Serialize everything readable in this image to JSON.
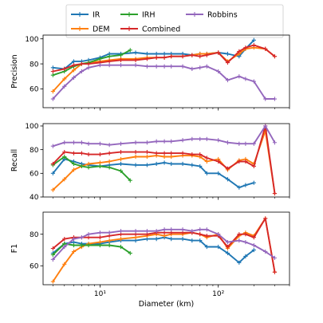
{
  "chart_data": {
    "type": "line",
    "x_scale": "log",
    "xlabel": "Diameter (km)",
    "xlim": [
      3.3,
      400
    ],
    "x_ticks": [
      10,
      100
    ],
    "x_tick_labels": [
      "10¹",
      "10²"
    ],
    "legend": {
      "placement": "top-center",
      "entries": [
        {
          "name": "IR",
          "color": "#1f77b4"
        },
        {
          "name": "DEM",
          "color": "#ff7f0e"
        },
        {
          "name": "IRH",
          "color": "#2ca02c"
        },
        {
          "name": "Combined",
          "color": "#d62728"
        },
        {
          "name": "Robbins",
          "color": "#9467bd"
        }
      ]
    },
    "panels": [
      {
        "ylabel": "Precision",
        "ylim": [
          45,
          103
        ],
        "y_ticks": [
          60,
          80,
          100
        ],
        "series": [
          {
            "name": "IR",
            "color": "#1f77b4",
            "x": [
              4,
              5,
              6,
              7,
              8,
              10,
              12,
              15,
              20,
              25,
              30,
              35,
              40,
              50,
              60,
              70,
              80,
              100,
              120,
              150,
              170,
              200
            ],
            "y": [
              77,
              76,
              82,
              82,
              83,
              85,
              88,
              88,
              89,
              88,
              88,
              88,
              88,
              88,
              87,
              88,
              88,
              89,
              88,
              86,
              92,
              99
            ]
          },
          {
            "name": "DEM",
            "color": "#ff7f0e",
            "x": [
              4,
              5,
              6,
              7,
              8,
              10,
              12,
              15,
              20,
              25,
              30,
              35,
              40,
              50,
              60,
              70,
              80,
              100,
              120,
              150,
              170,
              200,
              250,
              300
            ],
            "y": [
              58,
              68,
              75,
              80,
              81,
              82,
              83,
              84,
              84,
              85,
              85,
              85,
              86,
              86,
              87,
              88,
              88,
              89,
              82,
              88,
              92,
              93,
              92,
              86
            ]
          },
          {
            "name": "IRH",
            "color": "#2ca02c",
            "x": [
              4,
              5,
              6,
              7,
              8,
              10,
              12,
              15,
              18
            ],
            "y": [
              71,
              74,
              78,
              80,
              81,
              84,
              86,
              87,
              91
            ]
          },
          {
            "name": "Combined",
            "color": "#d62728",
            "x": [
              4,
              5,
              6,
              7,
              8,
              10,
              12,
              15,
              20,
              25,
              30,
              35,
              40,
              50,
              60,
              70,
              80,
              100,
              120,
              150,
              170,
              200,
              250,
              300
            ],
            "y": [
              74,
              76,
              79,
              80,
              80,
              81,
              82,
              83,
              83,
              84,
              85,
              85,
              86,
              86,
              87,
              86,
              87,
              89,
              81,
              90,
              93,
              95,
              92,
              86
            ]
          },
          {
            "name": "Robbins",
            "color": "#9467bd",
            "x": [
              4,
              5,
              6,
              7,
              8,
              10,
              12,
              15,
              20,
              25,
              30,
              35,
              40,
              50,
              60,
              70,
              80,
              100,
              120,
              150,
              170,
              200,
              250,
              300
            ],
            "y": [
              52,
              62,
              69,
              74,
              77,
              79,
              79,
              79,
              79,
              78,
              78,
              78,
              78,
              78,
              76,
              77,
              78,
              74,
              67,
              70,
              68,
              66,
              52,
              52
            ]
          }
        ]
      },
      {
        "ylabel": "Recall",
        "ylim": [
          40,
          102
        ],
        "y_ticks": [
          40,
          60,
          80,
          100
        ],
        "series": [
          {
            "name": "IR",
            "color": "#1f77b4",
            "x": [
              4,
              5,
              6,
              7,
              8,
              10,
              12,
              15,
              20,
              25,
              30,
              35,
              40,
              50,
              60,
              70,
              80,
              100,
              120,
              150,
              170,
              200
            ],
            "y": [
              60,
              72,
              70,
              68,
              67,
              66,
              67,
              68,
              67,
              67,
              68,
              69,
              68,
              68,
              67,
              66,
              60,
              60,
              55,
              48,
              50,
              52
            ]
          },
          {
            "name": "DEM",
            "color": "#ff7f0e",
            "x": [
              4,
              5,
              6,
              7,
              8,
              10,
              12,
              15,
              20,
              25,
              30,
              35,
              40,
              50,
              60,
              70,
              80,
              100,
              120,
              150,
              170,
              200,
              250,
              300
            ],
            "y": [
              46,
              55,
              63,
              66,
              68,
              69,
              70,
              72,
              74,
              74,
              75,
              74,
              74,
              75,
              75,
              74,
              70,
              72,
              63,
              71,
              72,
              68,
              96,
              43
            ]
          },
          {
            "name": "IRH",
            "color": "#2ca02c",
            "x": [
              4,
              5,
              6,
              7,
              8,
              10,
              12,
              15,
              18
            ],
            "y": [
              67,
              74,
              68,
              66,
              65,
              66,
              65,
              62,
              54
            ]
          },
          {
            "name": "Combined",
            "color": "#d62728",
            "x": [
              4,
              5,
              6,
              7,
              8,
              10,
              12,
              15,
              20,
              25,
              30,
              35,
              40,
              50,
              60,
              70,
              80,
              100,
              120,
              150,
              170,
              200,
              250,
              300
            ],
            "y": [
              68,
              78,
              77,
              77,
              76,
              76,
              77,
              78,
              78,
              78,
              77,
              77,
              77,
              77,
              76,
              76,
              73,
              70,
              64,
              70,
              70,
              66,
              100,
              43
            ]
          },
          {
            "name": "Robbins",
            "color": "#9467bd",
            "x": [
              4,
              5,
              6,
              7,
              8,
              10,
              12,
              15,
              20,
              25,
              30,
              35,
              40,
              50,
              60,
              70,
              80,
              100,
              120,
              150,
              170,
              200,
              250,
              300
            ],
            "y": [
              83,
              86,
              86,
              86,
              85,
              85,
              84,
              85,
              86,
              86,
              87,
              87,
              87,
              88,
              89,
              89,
              89,
              88,
              86,
              85,
              85,
              85,
              100,
              86
            ]
          }
        ]
      },
      {
        "ylabel": "F1",
        "ylim": [
          48,
          94
        ],
        "y_ticks": [
          60,
          80
        ],
        "series": [
          {
            "name": "IR",
            "color": "#1f77b4",
            "x": [
              4,
              5,
              6,
              7,
              8,
              10,
              12,
              15,
              20,
              25,
              30,
              35,
              40,
              50,
              60,
              70,
              80,
              100,
              120,
              150,
              170,
              200
            ],
            "y": [
              68,
              74,
              75,
              74,
              74,
              74,
              75,
              76,
              76,
              77,
              77,
              78,
              77,
              77,
              76,
              76,
              72,
              72,
              68,
              62,
              66,
              70
            ]
          },
          {
            "name": "DEM",
            "color": "#ff7f0e",
            "x": [
              4,
              5,
              6,
              7,
              8,
              10,
              12,
              15,
              20,
              25,
              30,
              35,
              40,
              50,
              60,
              70,
              80,
              100,
              120,
              150,
              170,
              200,
              250,
              300
            ],
            "y": [
              50,
              61,
              69,
              72,
              74,
              75,
              76,
              77,
              78,
              79,
              80,
              79,
              80,
              80,
              81,
              80,
              78,
              80,
              71,
              79,
              81,
              79,
              90,
              56
            ]
          },
          {
            "name": "IRH",
            "color": "#2ca02c",
            "x": [
              4,
              5,
              6,
              7,
              8,
              10,
              12,
              15,
              18
            ],
            "y": [
              67,
              74,
              73,
              73,
              73,
              73,
              73,
              72,
              68
            ]
          },
          {
            "name": "Combined",
            "color": "#d62728",
            "x": [
              4,
              5,
              6,
              7,
              8,
              10,
              12,
              15,
              20,
              25,
              30,
              35,
              40,
              50,
              60,
              70,
              80,
              100,
              120,
              150,
              170,
              200,
              250,
              300
            ],
            "y": [
              71,
              77,
              78,
              78,
              78,
              78,
              79,
              80,
              80,
              80,
              81,
              81,
              81,
              81,
              81,
              80,
              79,
              79,
              72,
              80,
              80,
              78,
              90,
              56
            ]
          },
          {
            "name": "Robbins",
            "color": "#9467bd",
            "x": [
              4,
              5,
              6,
              7,
              8,
              10,
              12,
              15,
              20,
              25,
              30,
              35,
              40,
              50,
              60,
              70,
              80,
              100,
              120,
              150,
              170,
              200,
              250,
              300
            ],
            "y": [
              64,
              72,
              77,
              78,
              80,
              81,
              81,
              82,
              82,
              82,
              82,
              83,
              83,
              83,
              82,
              83,
              83,
              80,
              75,
              76,
              75,
              73,
              69,
              65
            ]
          }
        ]
      }
    ]
  }
}
